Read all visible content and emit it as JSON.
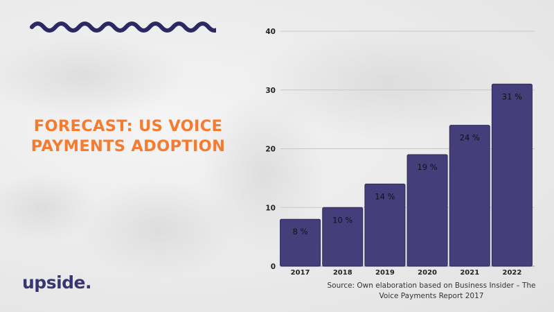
{
  "headline": {
    "line1": "FORECAST: US VOICE",
    "line2": "PAYMENTS ADOPTION"
  },
  "brand": {
    "logo_text": "upside."
  },
  "source_note": "Source: Own elaboration based on Business Insider – The Voice Payments Report 2017",
  "colors": {
    "bar": "#443f7a",
    "headline": "#f47b30",
    "wave": "#2d2762",
    "logo": "#3a3470",
    "gridline": "#c8c8c8"
  },
  "chart_data": {
    "type": "bar",
    "title": "",
    "xlabel": "",
    "ylabel": "",
    "categories": [
      "2017",
      "2018",
      "2019",
      "2020",
      "2021",
      "2022"
    ],
    "values": [
      8,
      10,
      14,
      19,
      24,
      31
    ],
    "value_labels": [
      "8 %",
      "10 %",
      "14 %",
      "19 %",
      "24 %",
      "31 %"
    ],
    "y_ticks": [
      0,
      10,
      20,
      30,
      40
    ],
    "ylim": [
      0,
      40
    ],
    "grid": true,
    "legend": "none"
  }
}
